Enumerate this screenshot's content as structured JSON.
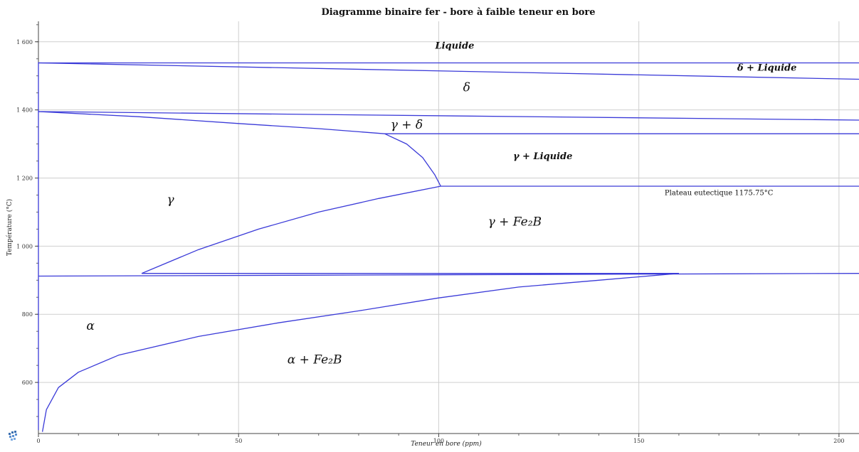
{
  "chart_data": {
    "type": "line",
    "title": "Diagramme binaire fer - bore à faible teneur en bore",
    "xlabel": "Teneur en bore (ppm)",
    "ylabel": "Température (°C)",
    "xlim": [
      0,
      205
    ],
    "ylim": [
      450,
      1660
    ],
    "x_ticks": [
      0,
      50,
      100,
      150,
      200
    ],
    "x_tick_labels": [
      "0",
      "50",
      "100",
      "150",
      "200"
    ],
    "y_ticks": [
      600,
      800,
      1000,
      1200,
      1400,
      1600
    ],
    "y_tick_labels": [
      "600",
      "800",
      "1 000",
      "1 200",
      "1 400",
      "1 600"
    ],
    "grid": true,
    "line_color": "#3a3ad8",
    "series": [
      {
        "x": [
          0,
          205
        ],
        "y": [
          1538,
          1538
        ]
      },
      {
        "x": [
          0,
          205
        ],
        "y": [
          1538,
          1490
        ]
      },
      {
        "x": [
          0,
          205
        ],
        "y": [
          1395,
          1370
        ]
      },
      {
        "x": [
          0,
          25,
          50,
          70,
          86.5
        ],
        "y": [
          1395,
          1380,
          1360,
          1345,
          1330
        ]
      },
      {
        "x": [
          86.5,
          205
        ],
        "y": [
          1330,
          1330
        ]
      },
      {
        "x": [
          86.5,
          92,
          96,
          99,
          100.5
        ],
        "y": [
          1330,
          1300,
          1260,
          1210,
          1176
        ]
      },
      {
        "x": [
          100.5,
          205
        ],
        "y": [
          1176,
          1176
        ]
      },
      {
        "x": [
          25.8,
          40,
          55,
          70,
          85,
          100.5
        ],
        "y": [
          920,
          990,
          1050,
          1100,
          1140,
          1176
        ]
      },
      {
        "x": [
          25.8,
          160
        ],
        "y": [
          920,
          920
        ]
      },
      {
        "x": [
          0,
          205
        ],
        "y": [
          912,
          920
        ]
      },
      {
        "x": [
          1,
          2,
          5,
          10,
          20,
          40,
          60,
          80,
          100,
          120,
          140,
          160
        ],
        "y": [
          455,
          520,
          585,
          630,
          680,
          735,
          775,
          810,
          848,
          880,
          900,
          920
        ]
      },
      {
        "x": [
          0,
          0
        ],
        "y": [
          460,
          1540
        ]
      }
    ],
    "annotations": [
      {
        "text": "Liquide",
        "x": 104,
        "y": 1580,
        "style": "bold"
      },
      {
        "text": "δ + Liquide",
        "x": 182,
        "y": 1515,
        "style": "bold"
      },
      {
        "text": "δ",
        "x": 107,
        "y": 1455,
        "style": "greek"
      },
      {
        "text": "γ + δ",
        "x": 92,
        "y": 1345,
        "style": "greek"
      },
      {
        "text": "γ + Liquide",
        "x": 126,
        "y": 1255,
        "style": "bold"
      },
      {
        "text": "Plateau eutectique 1175.75°C",
        "x": 170,
        "y": 1150,
        "style": "plain"
      },
      {
        "text": "γ",
        "x": 33,
        "y": 1125,
        "style": "greek"
      },
      {
        "text": "γ + Fe₂B",
        "x": 119,
        "y": 1060,
        "style": "greek"
      },
      {
        "text": "α",
        "x": 13,
        "y": 755,
        "style": "greek"
      },
      {
        "text": "α + Fe₂B",
        "x": 69,
        "y": 655,
        "style": "greek"
      }
    ]
  }
}
